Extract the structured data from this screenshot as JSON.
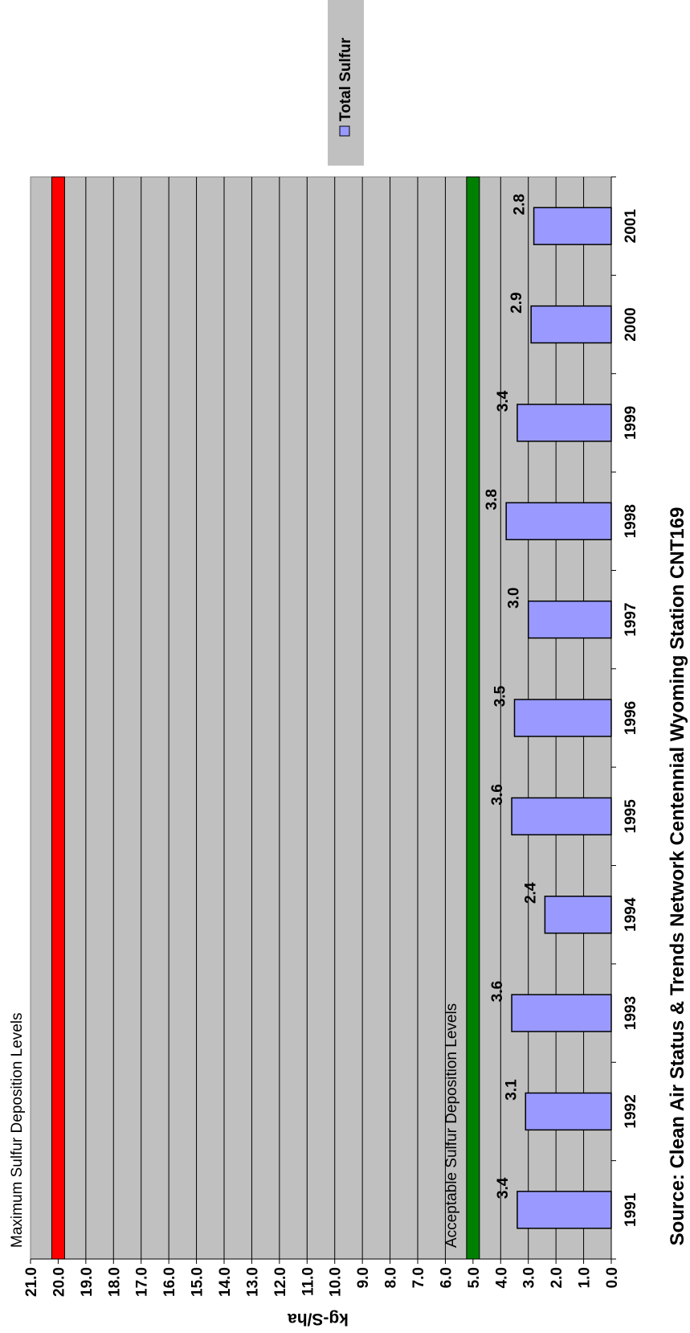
{
  "chart_data": {
    "type": "bar",
    "orientation": "rotated-90-ccw",
    "ylabel": "kg-S/ha",
    "source": "Source: Clean Air Status & Trends Network Centennial Wyoming Station CNT169",
    "ylim": [
      0,
      21
    ],
    "y_ticks": [
      "0.0",
      "1.0",
      "2.0",
      "3.0",
      "4.0",
      "5.0",
      "6.0",
      "7.0",
      "8.0",
      "9.0",
      "10.0",
      "11.0",
      "12.0",
      "13.0",
      "14.0",
      "15.0",
      "16.0",
      "17.0",
      "18.0",
      "19.0",
      "20.0",
      "21.0"
    ],
    "categories": [
      "1991",
      "1992",
      "1993",
      "1994",
      "1995",
      "1996",
      "1997",
      "1998",
      "1999",
      "2000",
      "2001"
    ],
    "series": [
      {
        "name": "Total Sulfur",
        "color": "#9999ff",
        "values": [
          3.4,
          3.1,
          3.6,
          2.4,
          3.6,
          3.5,
          3.0,
          3.8,
          3.4,
          2.9,
          2.8
        ],
        "labels": [
          "3.4",
          "3.1",
          "3.6",
          "2.4",
          "3.6",
          "3.5",
          "3.0",
          "3.8",
          "3.4",
          "2.9",
          "2.8"
        ]
      }
    ],
    "reference_lines": [
      {
        "label": "Maximum Sulfur Deposition Levels",
        "value": 20.0,
        "color": "#ff0000"
      },
      {
        "label": "Acceptable Sulfur Deposition Levels",
        "value": 5.0,
        "color": "#008000"
      }
    ],
    "grid": true,
    "plot_background": "#c0c0c0",
    "legend": {
      "position": "top-right",
      "entries": [
        "Total Sulfur"
      ]
    }
  }
}
